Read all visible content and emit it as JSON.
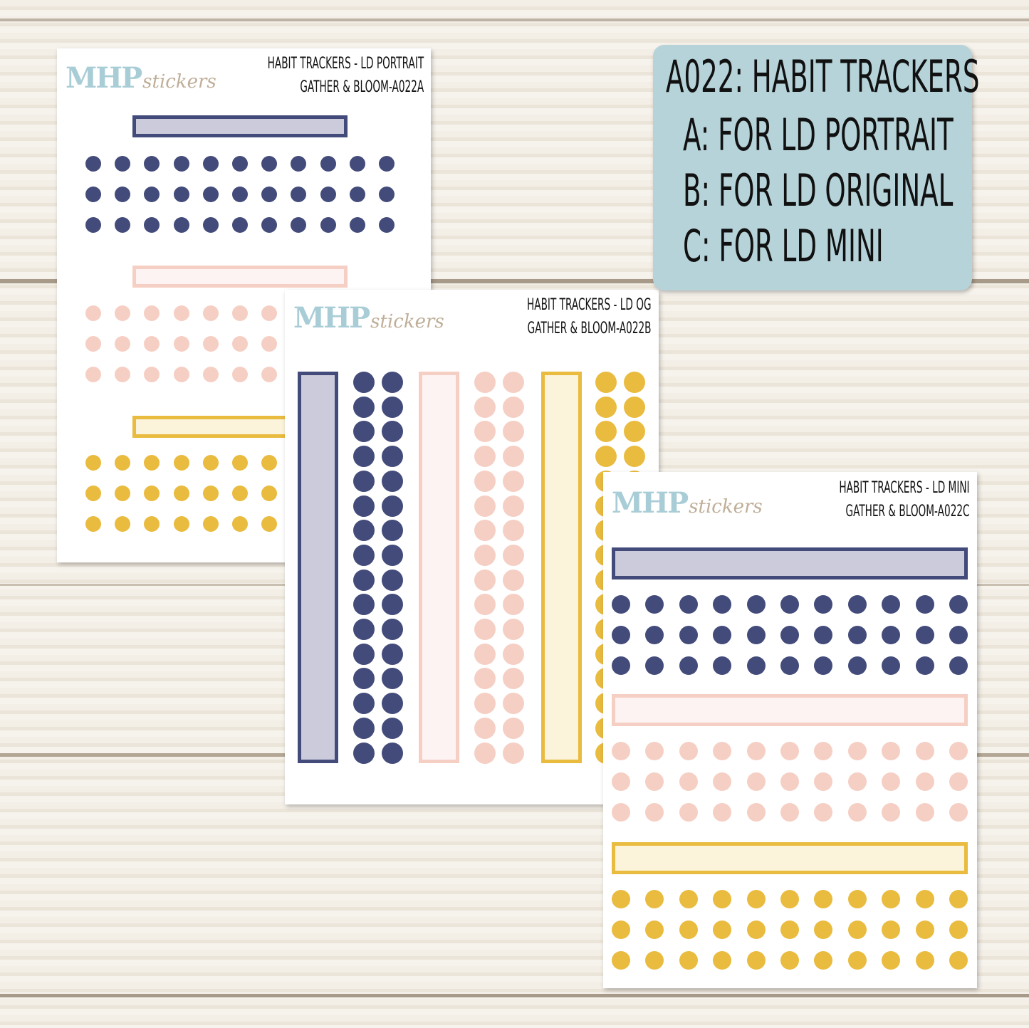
{
  "brand": {
    "logo_main": "MHP",
    "logo_script": "stickers"
  },
  "colors": {
    "navy": "#434b7a",
    "navy_fill": "#cbcbdb",
    "pink": "#f6cfc4",
    "pink_fill": "#fdf3f3",
    "yellow": "#e9bb3f",
    "yellow_fill": "#fbf3da",
    "info_bg": "#b6d3d9"
  },
  "sheets": [
    {
      "line1": "HABIT TRACKERS - LD PORTRAIT",
      "line2": "GATHER & BLOOM-A022A"
    },
    {
      "line1": "HABIT TRACKERS - LD OG",
      "line2": "GATHER & BLOOM-A022B"
    },
    {
      "line1": "HABIT TRACKERS - LD MINI",
      "line2": "GATHER & BLOOM-A022C"
    }
  ],
  "info": {
    "title": "A022: HABIT TRACKERS",
    "lines": [
      "A: FOR LD PORTRAIT",
      "B: FOR LD ORIGINAL",
      "C: FOR LD MINI"
    ]
  }
}
